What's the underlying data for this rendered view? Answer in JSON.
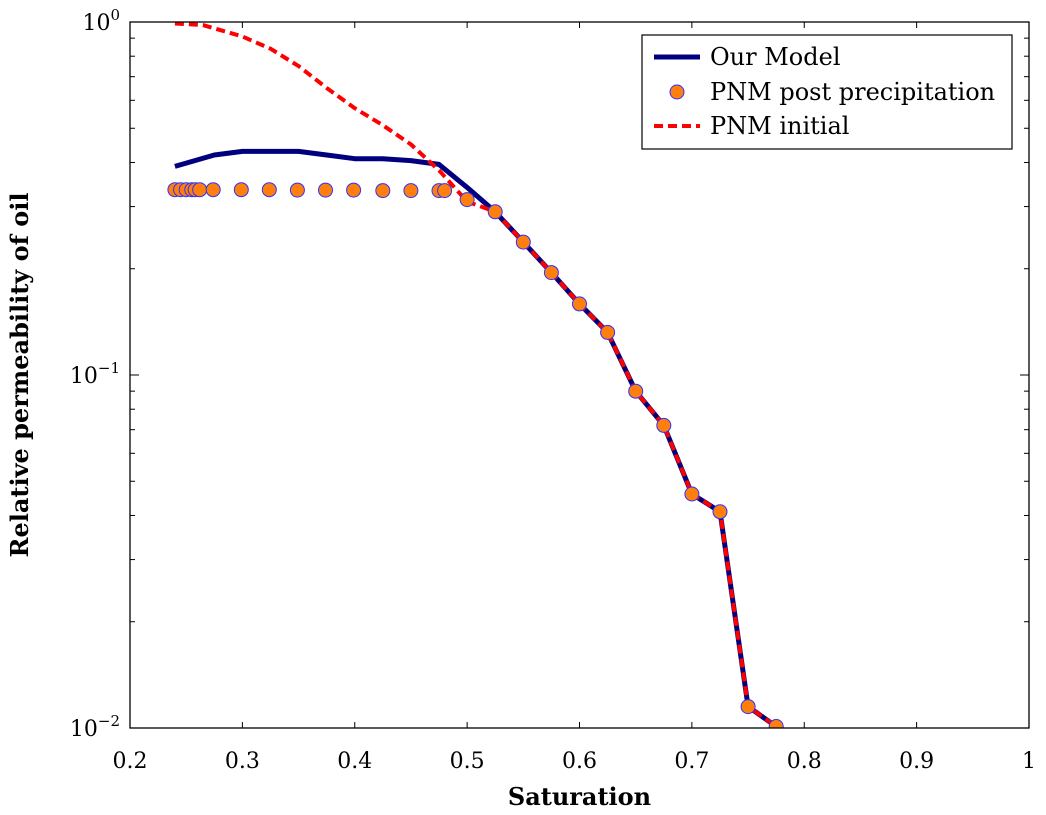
{
  "chart_data": {
    "type": "line",
    "title": "",
    "xlabel": "Saturation",
    "ylabel": "Relative permeability of oil",
    "xlim": [
      0.2,
      1.0
    ],
    "ylim": [
      0.01,
      1.0
    ],
    "yscale": "log",
    "grid": false,
    "legend_position": "top-right",
    "x_ticks": [
      "0.2",
      "0.3",
      "0.4",
      "0.5",
      "0.6",
      "0.7",
      "0.8",
      "0.9",
      "1"
    ],
    "y_ticks": [
      {
        "value": 0.01,
        "base": "10",
        "exp": "−2"
      },
      {
        "value": 0.1,
        "base": "10",
        "exp": "−1"
      },
      {
        "value": 1,
        "base": "10",
        "exp": "0"
      }
    ],
    "series": [
      {
        "name": "Our Model",
        "style": "solid-line",
        "color": "#00007f",
        "x": [
          0.24,
          0.275,
          0.3,
          0.35,
          0.375,
          0.4,
          0.425,
          0.45,
          0.475,
          0.5,
          0.525,
          0.55,
          0.575,
          0.6,
          0.625,
          0.65,
          0.675,
          0.7,
          0.725,
          0.75,
          0.775
        ],
        "y": [
          0.39,
          0.42,
          0.43,
          0.43,
          0.42,
          0.41,
          0.41,
          0.405,
          0.395,
          0.34,
          0.29,
          0.238,
          0.195,
          0.159,
          0.132,
          0.09,
          0.072,
          0.046,
          0.041,
          0.0115,
          0.0101
        ]
      },
      {
        "name": "PNM post precipitation",
        "style": "markers",
        "color": "#ff7f0e",
        "edge_color": "#3030ff",
        "x": [
          0.24,
          0.245,
          0.25,
          0.255,
          0.258,
          0.262,
          0.274,
          0.299,
          0.324,
          0.349,
          0.374,
          0.399,
          0.425,
          0.45,
          0.475,
          0.48,
          0.5,
          0.525,
          0.55,
          0.575,
          0.6,
          0.625,
          0.65,
          0.675,
          0.7,
          0.725,
          0.75,
          0.775
        ],
        "y": [
          0.335,
          0.335,
          0.335,
          0.335,
          0.335,
          0.335,
          0.335,
          0.335,
          0.335,
          0.334,
          0.334,
          0.334,
          0.333,
          0.333,
          0.333,
          0.333,
          0.314,
          0.29,
          0.238,
          0.195,
          0.159,
          0.132,
          0.09,
          0.072,
          0.046,
          0.041,
          0.0115,
          0.0101
        ]
      },
      {
        "name": "PNM initial",
        "style": "dashed-line",
        "color": "#ff0000",
        "x": [
          0.24,
          0.265,
          0.3,
          0.325,
          0.35,
          0.375,
          0.4,
          0.425,
          0.45,
          0.475,
          0.5,
          0.525,
          0.55,
          0.575,
          0.6,
          0.625,
          0.65,
          0.675,
          0.7,
          0.725,
          0.75,
          0.775
        ],
        "y": [
          0.99,
          0.98,
          0.91,
          0.84,
          0.75,
          0.65,
          0.57,
          0.51,
          0.45,
          0.38,
          0.31,
          0.29,
          0.238,
          0.195,
          0.159,
          0.132,
          0.09,
          0.072,
          0.046,
          0.041,
          0.0115,
          0.0101
        ]
      }
    ]
  }
}
